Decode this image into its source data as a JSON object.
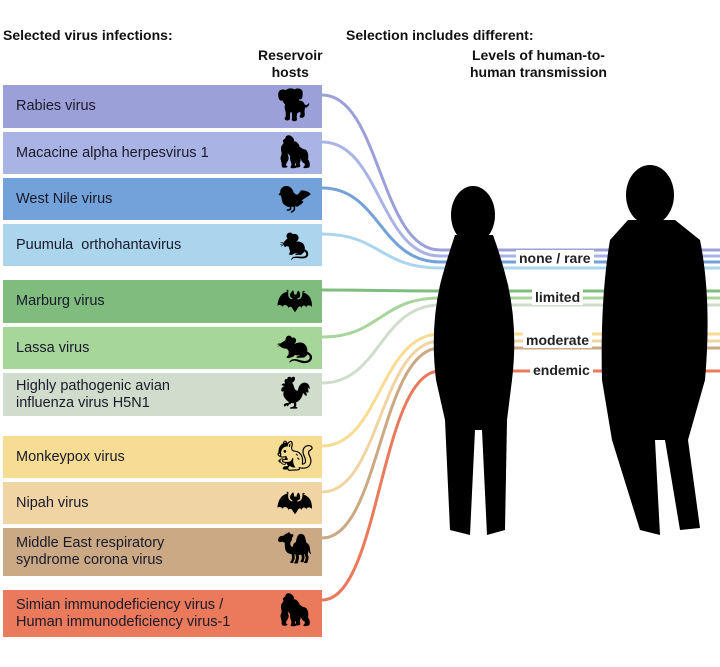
{
  "headers": {
    "left": "Selected virus infections:",
    "middle": "Selection includes different:",
    "hosts": "Reservoir\nhosts",
    "levels": "Levels of human-to-\nhuman transmission"
  },
  "viruses": [
    {
      "label": "Rabies virus",
      "color": "#9ca0d9",
      "host": "dog",
      "level": 0
    },
    {
      "label": "Macacine alpha herpesvirus 1",
      "color": "#aab4e4",
      "host": "macaque",
      "level": 0
    },
    {
      "label": "West Nile virus",
      "color": "#72a2d9",
      "host": "mosquito-bird",
      "level": 0
    },
    {
      "label": "Puumula  orthohantavirus",
      "color": "#aad5ed",
      "host": "vole",
      "level": 0
    },
    {
      "label": "Marburg virus",
      "color": "#7fbc7e",
      "host": "bat",
      "level": 1
    },
    {
      "label": "Lassa virus",
      "color": "#a7d69b",
      "host": "rat",
      "level": 1
    },
    {
      "label": "Highly pathogenic avian\ninfluenza virus H5N1",
      "color": "#d0ddcc",
      "host": "chicken",
      "level": 1
    },
    {
      "label": "Monkeypox virus",
      "color": "#f6dd93",
      "host": "squirrel",
      "level": 2
    },
    {
      "label": "Nipah virus",
      "color": "#f0d4a3",
      "host": "fruit-bat",
      "level": 2
    },
    {
      "label": "Middle East respiratory\nsyndrome corona virus",
      "color": "#caa984",
      "host": "camel",
      "level": 2
    },
    {
      "label": "Simian immunodeficiency virus /\nHuman immunodeficiency virus-1",
      "color": "#ea7a5b",
      "host": "chimpanzee",
      "level": 3
    }
  ],
  "levels": [
    "none / rare",
    "limited",
    "moderate",
    "endemic"
  ]
}
